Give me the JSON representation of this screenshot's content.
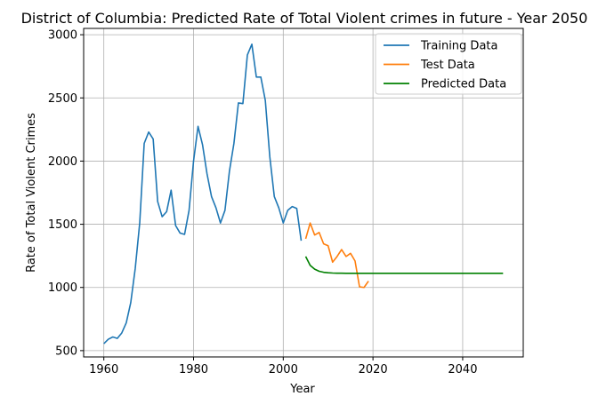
{
  "chart_data": {
    "type": "line",
    "title": "District of Columbia: Predicted Rate of Total Violent crimes in future - Year 2050",
    "xlabel": "Year",
    "ylabel": "Rate of Total Violent Crimes",
    "xlim": [
      1955.5,
      2053.5
    ],
    "ylim": [
      450,
      3050
    ],
    "xticks": [
      1960,
      1980,
      2000,
      2020,
      2040
    ],
    "yticks": [
      500,
      1000,
      1500,
      2000,
      2500,
      3000
    ],
    "grid": true,
    "legend_position": "top-right",
    "series": [
      {
        "name": "Training Data",
        "color": "#1f77b4",
        "x": [
          1960,
          1961,
          1962,
          1963,
          1964,
          1965,
          1966,
          1967,
          1968,
          1969,
          1970,
          1971,
          1972,
          1973,
          1974,
          1975,
          1976,
          1977,
          1978,
          1979,
          1980,
          1981,
          1982,
          1983,
          1984,
          1985,
          1986,
          1987,
          1988,
          1989,
          1990,
          1991,
          1992,
          1993,
          1994,
          1995,
          1996,
          1997,
          1998,
          1999,
          2000,
          2001,
          2002,
          2003,
          2004
        ],
        "y": [
          555,
          590,
          608,
          597,
          640,
          720,
          880,
          1150,
          1510,
          2140,
          2230,
          2175,
          1680,
          1560,
          1600,
          1770,
          1490,
          1430,
          1420,
          1610,
          2000,
          2275,
          2130,
          1900,
          1720,
          1630,
          1510,
          1610,
          1920,
          2140,
          2460,
          2455,
          2840,
          2925,
          2665,
          2665,
          2480,
          2035,
          1720,
          1630,
          1510,
          1610,
          1640,
          1625,
          1370
        ]
      },
      {
        "name": "Test Data",
        "color": "#ff7f0e",
        "x": [
          2005,
          2006,
          2007,
          2008,
          2009,
          2010,
          2011,
          2012,
          2013,
          2014,
          2015,
          2016,
          2017,
          2018,
          2019
        ],
        "y": [
          1385,
          1510,
          1415,
          1435,
          1345,
          1330,
          1200,
          1245,
          1300,
          1245,
          1270,
          1210,
          1005,
          1000,
          1050
        ]
      },
      {
        "name": "Predicted Data",
        "color": "#008000",
        "x": [
          2005,
          2006,
          2007,
          2008,
          2009,
          2010,
          2011,
          2012,
          2013,
          2014,
          2015,
          2016,
          2017,
          2018,
          2019,
          2020,
          2021,
          2022,
          2023,
          2024,
          2025,
          2026,
          2027,
          2028,
          2029,
          2030,
          2031,
          2032,
          2033,
          2034,
          2035,
          2036,
          2037,
          2038,
          2039,
          2040,
          2041,
          2042,
          2043,
          2044,
          2045,
          2046,
          2047,
          2048,
          2049
        ],
        "y": [
          1245,
          1175,
          1145,
          1128,
          1120,
          1116,
          1114,
          1113,
          1113,
          1112,
          1112,
          1112,
          1112,
          1112,
          1112,
          1112,
          1112,
          1112,
          1112,
          1112,
          1112,
          1112,
          1112,
          1112,
          1112,
          1112,
          1112,
          1112,
          1112,
          1112,
          1112,
          1112,
          1112,
          1112,
          1112,
          1112,
          1112,
          1112,
          1112,
          1112,
          1112,
          1112,
          1112,
          1112,
          1112
        ]
      }
    ]
  }
}
